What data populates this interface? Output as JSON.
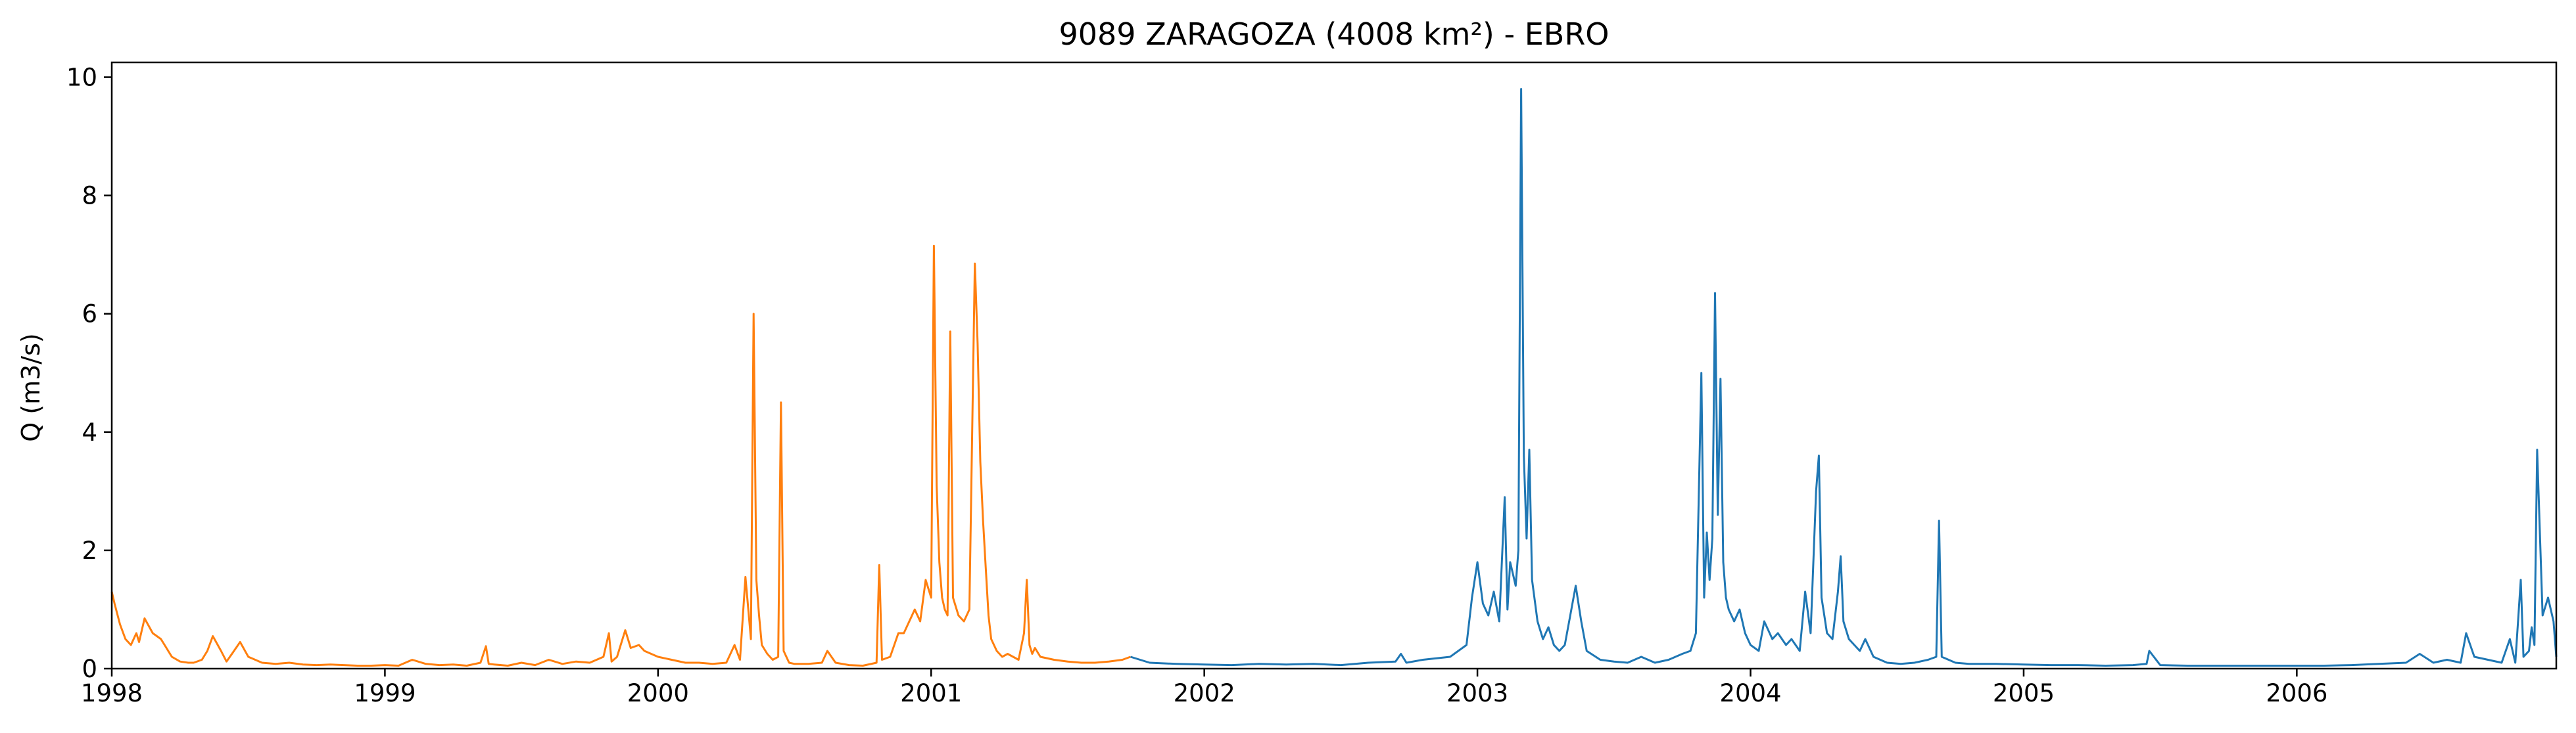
{
  "chart_data": {
    "type": "line",
    "title": "9089 ZARAGOZA (4008 km²) - EBRO",
    "xlabel": "",
    "ylabel": "Q (m3/s)",
    "xlim": [
      1998.0,
      2006.95
    ],
    "ylim": [
      0,
      10.25
    ],
    "x_ticks": [
      1998,
      1999,
      2000,
      2001,
      2002,
      2003,
      2004,
      2005,
      2006
    ],
    "x_tick_labels": [
      "1998",
      "1999",
      "2000",
      "2001",
      "2002",
      "2003",
      "2004",
      "2005",
      "2006"
    ],
    "y_ticks": [
      0,
      2,
      4,
      6,
      8,
      10
    ],
    "y_tick_labels": [
      "0",
      "2",
      "4",
      "6",
      "8",
      "10"
    ],
    "grid": false,
    "legend": "none",
    "series": [
      {
        "color": "#ff7f0e",
        "x": [
          1998.0,
          1998.01,
          1998.03,
          1998.05,
          1998.07,
          1998.09,
          1998.1,
          1998.12,
          1998.15,
          1998.18,
          1998.2,
          1998.22,
          1998.25,
          1998.28,
          1998.3,
          1998.33,
          1998.35,
          1998.37,
          1998.4,
          1998.42,
          1998.44,
          1998.47,
          1998.5,
          1998.55,
          1998.6,
          1998.65,
          1998.7,
          1998.75,
          1998.8,
          1998.85,
          1998.9,
          1998.95,
          1999.0,
          1999.05,
          1999.1,
          1999.15,
          1999.2,
          1999.25,
          1999.3,
          1999.35,
          1999.37,
          1999.38,
          1999.4,
          1999.45,
          1999.5,
          1999.55,
          1999.6,
          1999.65,
          1999.7,
          1999.75,
          1999.8,
          1999.82,
          1999.83,
          1999.85,
          1999.88,
          1999.9,
          1999.93,
          1999.95,
          2000.0,
          2000.05,
          2000.1,
          2000.15,
          2000.2,
          2000.25,
          2000.28,
          2000.3,
          2000.32,
          2000.34,
          2000.35,
          2000.36,
          2000.37,
          2000.38,
          2000.4,
          2000.42,
          2000.44,
          2000.45,
          2000.46,
          2000.48,
          2000.5,
          2000.55,
          2000.6,
          2000.62,
          2000.65,
          2000.7,
          2000.75,
          2000.8,
          2000.81,
          2000.82,
          2000.85,
          2000.88,
          2000.9,
          2000.92,
          2000.94,
          2000.96,
          2000.98,
          2001.0,
          2001.01,
          2001.02,
          2001.03,
          2001.04,
          2001.05,
          2001.06,
          2001.07,
          2001.08,
          2001.1,
          2001.12,
          2001.14,
          2001.16,
          2001.17,
          2001.18,
          2001.19,
          2001.2,
          2001.21,
          2001.22,
          2001.24,
          2001.26,
          2001.28,
          2001.3,
          2001.32,
          2001.34,
          2001.35,
          2001.36,
          2001.37,
          2001.38,
          2001.4,
          2001.45,
          2001.5,
          2001.55,
          2001.6,
          2001.65,
          2001.7,
          2001.73
        ],
        "y": [
          1.3,
          1.1,
          0.75,
          0.5,
          0.4,
          0.6,
          0.45,
          0.85,
          0.6,
          0.5,
          0.35,
          0.2,
          0.12,
          0.1,
          0.1,
          0.15,
          0.3,
          0.55,
          0.3,
          0.12,
          0.25,
          0.45,
          0.2,
          0.1,
          0.08,
          0.1,
          0.07,
          0.06,
          0.07,
          0.06,
          0.05,
          0.05,
          0.06,
          0.05,
          0.15,
          0.08,
          0.06,
          0.07,
          0.05,
          0.1,
          0.38,
          0.08,
          0.07,
          0.05,
          0.1,
          0.06,
          0.15,
          0.08,
          0.12,
          0.1,
          0.2,
          0.6,
          0.12,
          0.2,
          0.65,
          0.35,
          0.4,
          0.3,
          0.2,
          0.15,
          0.1,
          0.1,
          0.08,
          0.1,
          0.4,
          0.15,
          1.55,
          0.5,
          6.0,
          1.5,
          0.9,
          0.4,
          0.25,
          0.15,
          0.2,
          4.5,
          0.3,
          0.1,
          0.08,
          0.08,
          0.1,
          0.3,
          0.1,
          0.06,
          0.05,
          0.1,
          1.75,
          0.15,
          0.2,
          0.6,
          0.6,
          0.8,
          1.0,
          0.8,
          1.5,
          1.2,
          7.15,
          3.1,
          1.8,
          1.2,
          1.0,
          0.9,
          5.7,
          1.2,
          0.9,
          0.8,
          1.0,
          6.85,
          5.5,
          3.5,
          2.5,
          1.7,
          0.9,
          0.5,
          0.3,
          0.2,
          0.25,
          0.2,
          0.15,
          0.6,
          1.5,
          0.4,
          0.25,
          0.35,
          0.2,
          0.15,
          0.12,
          0.1,
          0.1,
          0.12,
          0.15,
          0.2
        ]
      },
      {
        "color": "#1f77b4",
        "x": [
          2001.73,
          2001.8,
          2001.9,
          2002.0,
          2002.1,
          2002.2,
          2002.3,
          2002.4,
          2002.5,
          2002.6,
          2002.7,
          2002.72,
          2002.74,
          2002.8,
          2002.9,
          2002.96,
          2002.98,
          2003.0,
          2003.02,
          2003.04,
          2003.06,
          2003.08,
          2003.1,
          2003.11,
          2003.12,
          2003.14,
          2003.15,
          2003.16,
          2003.17,
          2003.18,
          2003.19,
          2003.2,
          2003.22,
          2003.24,
          2003.26,
          2003.28,
          2003.3,
          2003.32,
          2003.34,
          2003.36,
          2003.38,
          2003.4,
          2003.45,
          2003.5,
          2003.55,
          2003.6,
          2003.65,
          2003.7,
          2003.75,
          2003.78,
          2003.8,
          2003.82,
          2003.83,
          2003.84,
          2003.85,
          2003.86,
          2003.87,
          2003.88,
          2003.89,
          2003.9,
          2003.91,
          2003.92,
          2003.94,
          2003.96,
          2003.98,
          2004.0,
          2004.03,
          2004.05,
          2004.08,
          2004.1,
          2004.13,
          2004.15,
          2004.18,
          2004.2,
          2004.22,
          2004.24,
          2004.25,
          2004.26,
          2004.27,
          2004.28,
          2004.3,
          2004.32,
          2004.33,
          2004.34,
          2004.36,
          2004.4,
          2004.42,
          2004.45,
          2004.5,
          2004.55,
          2004.6,
          2004.65,
          2004.68,
          2004.69,
          2004.7,
          2004.75,
          2004.8,
          2004.9,
          2005.0,
          2005.1,
          2005.2,
          2005.3,
          2005.4,
          2005.45,
          2005.46,
          2005.5,
          2005.6,
          2005.7,
          2005.8,
          2005.9,
          2006.0,
          2006.1,
          2006.2,
          2006.3,
          2006.4,
          2006.45,
          2006.5,
          2006.55,
          2006.6,
          2006.62,
          2006.65,
          2006.7,
          2006.75,
          2006.78,
          2006.8,
          2006.82,
          2006.83,
          2006.85,
          2006.86,
          2006.87,
          2006.88,
          2006.9,
          2006.92,
          2006.94,
          2006.95
        ],
        "y": [
          0.2,
          0.1,
          0.08,
          0.07,
          0.06,
          0.08,
          0.07,
          0.08,
          0.06,
          0.1,
          0.12,
          0.25,
          0.1,
          0.15,
          0.2,
          0.4,
          1.2,
          1.8,
          1.1,
          0.9,
          1.3,
          0.8,
          2.9,
          1.0,
          1.8,
          1.4,
          2.0,
          9.8,
          3.6,
          2.2,
          3.7,
          1.5,
          0.8,
          0.5,
          0.7,
          0.4,
          0.3,
          0.4,
          0.9,
          1.4,
          0.8,
          0.3,
          0.15,
          0.12,
          0.1,
          0.2,
          0.1,
          0.15,
          0.25,
          0.3,
          0.6,
          5.0,
          1.2,
          2.3,
          1.5,
          2.2,
          6.35,
          2.6,
          4.9,
          1.8,
          1.2,
          1.0,
          0.8,
          1.0,
          0.6,
          0.4,
          0.3,
          0.8,
          0.5,
          0.6,
          0.4,
          0.5,
          0.3,
          1.3,
          0.6,
          3.0,
          3.6,
          1.2,
          0.9,
          0.6,
          0.5,
          1.3,
          1.9,
          0.8,
          0.5,
          0.3,
          0.5,
          0.2,
          0.1,
          0.08,
          0.1,
          0.15,
          0.2,
          2.5,
          0.2,
          0.1,
          0.08,
          0.08,
          0.07,
          0.06,
          0.06,
          0.05,
          0.06,
          0.08,
          0.3,
          0.06,
          0.05,
          0.05,
          0.05,
          0.05,
          0.05,
          0.05,
          0.06,
          0.08,
          0.1,
          0.25,
          0.1,
          0.15,
          0.1,
          0.6,
          0.2,
          0.15,
          0.1,
          0.5,
          0.1,
          1.5,
          0.2,
          0.3,
          0.7,
          0.4,
          3.7,
          0.9,
          1.2,
          0.8,
          0.2
        ]
      }
    ]
  }
}
